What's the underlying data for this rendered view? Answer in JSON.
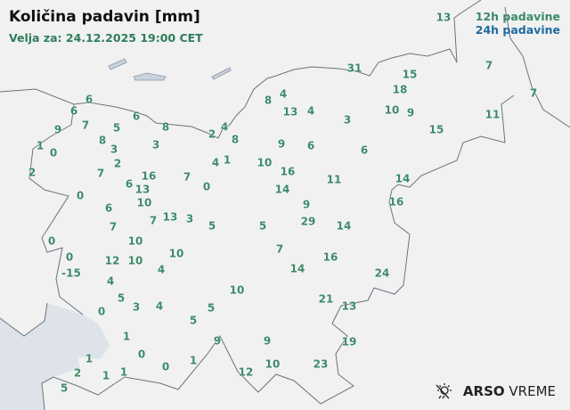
{
  "header": {
    "title": "Količina padavin [mm]",
    "valid_for": "Velja za: 24.12.2025 19:00 CET"
  },
  "legend": {
    "label_12h": "12h padavine",
    "label_24h": "24h padavine",
    "color_12h": "#3a8a68",
    "color_24h": "#1f6aa0"
  },
  "colors": {
    "value_text": "#3d8a6a",
    "sea": "#dde3e8",
    "land": "#f1f1f1",
    "border": "#6a7280"
  },
  "stations": [
    "13",
    "6",
    "6",
    "9",
    "7",
    "5",
    "6",
    "8",
    "1",
    "0",
    "8",
    "3",
    "3",
    "2",
    "4",
    "8",
    "2",
    "7",
    "2",
    "4",
    "1",
    "6",
    "16",
    "13",
    "10",
    "7",
    "0",
    "0",
    "6",
    "7",
    "13",
    "3",
    "5",
    "5",
    "7",
    "0",
    "10",
    "0",
    "10",
    "12",
    "10",
    "4",
    "-15",
    "4",
    "5",
    "3",
    "4",
    "0",
    "10",
    "5",
    "5",
    "1",
    "0",
    "9",
    "1",
    "0",
    "1",
    "2",
    "1",
    "1",
    "5",
    "12",
    "10",
    "9",
    "23",
    "19",
    "13",
    "21",
    "24",
    "14",
    "16",
    "7",
    "14",
    "29",
    "9",
    "16",
    "14",
    "11",
    "14",
    "16",
    "10",
    "9",
    "6",
    "6",
    "3",
    "8",
    "4",
    "13",
    "4",
    "31",
    "15",
    "18",
    "10",
    "9",
    "15",
    "7",
    "7",
    "11"
  ],
  "logo": {
    "brand": "ARSO",
    "product": "VREME",
    "icon": "sun-rain-icon"
  }
}
